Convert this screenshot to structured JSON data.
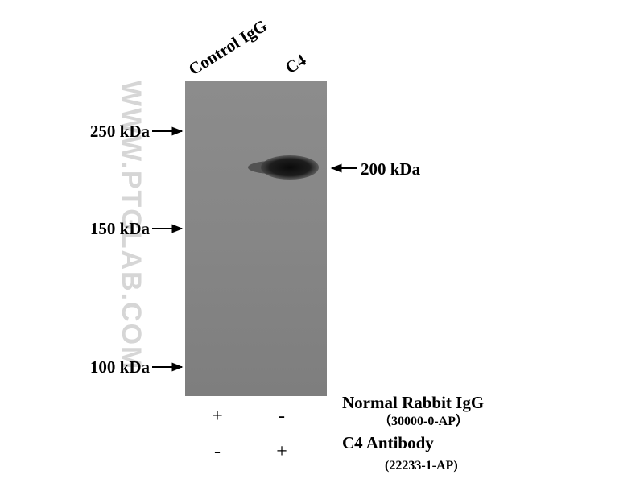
{
  "lanes": [
    "Control IgG",
    "C4"
  ],
  "markers": [
    "250 kDa",
    "150 kDa",
    "100 kDa"
  ],
  "band_label": "200 kDa",
  "watermark": "WWW.PTGLAB.COM",
  "treatments": [
    {
      "name": "Normal Rabbit IgG",
      "catalog": "（30000-0-AP）",
      "signs": [
        "+",
        "-"
      ]
    },
    {
      "name": "C4 Antibody",
      "catalog": "(22233-1-AP)",
      "signs": [
        "-",
        "+"
      ]
    }
  ]
}
